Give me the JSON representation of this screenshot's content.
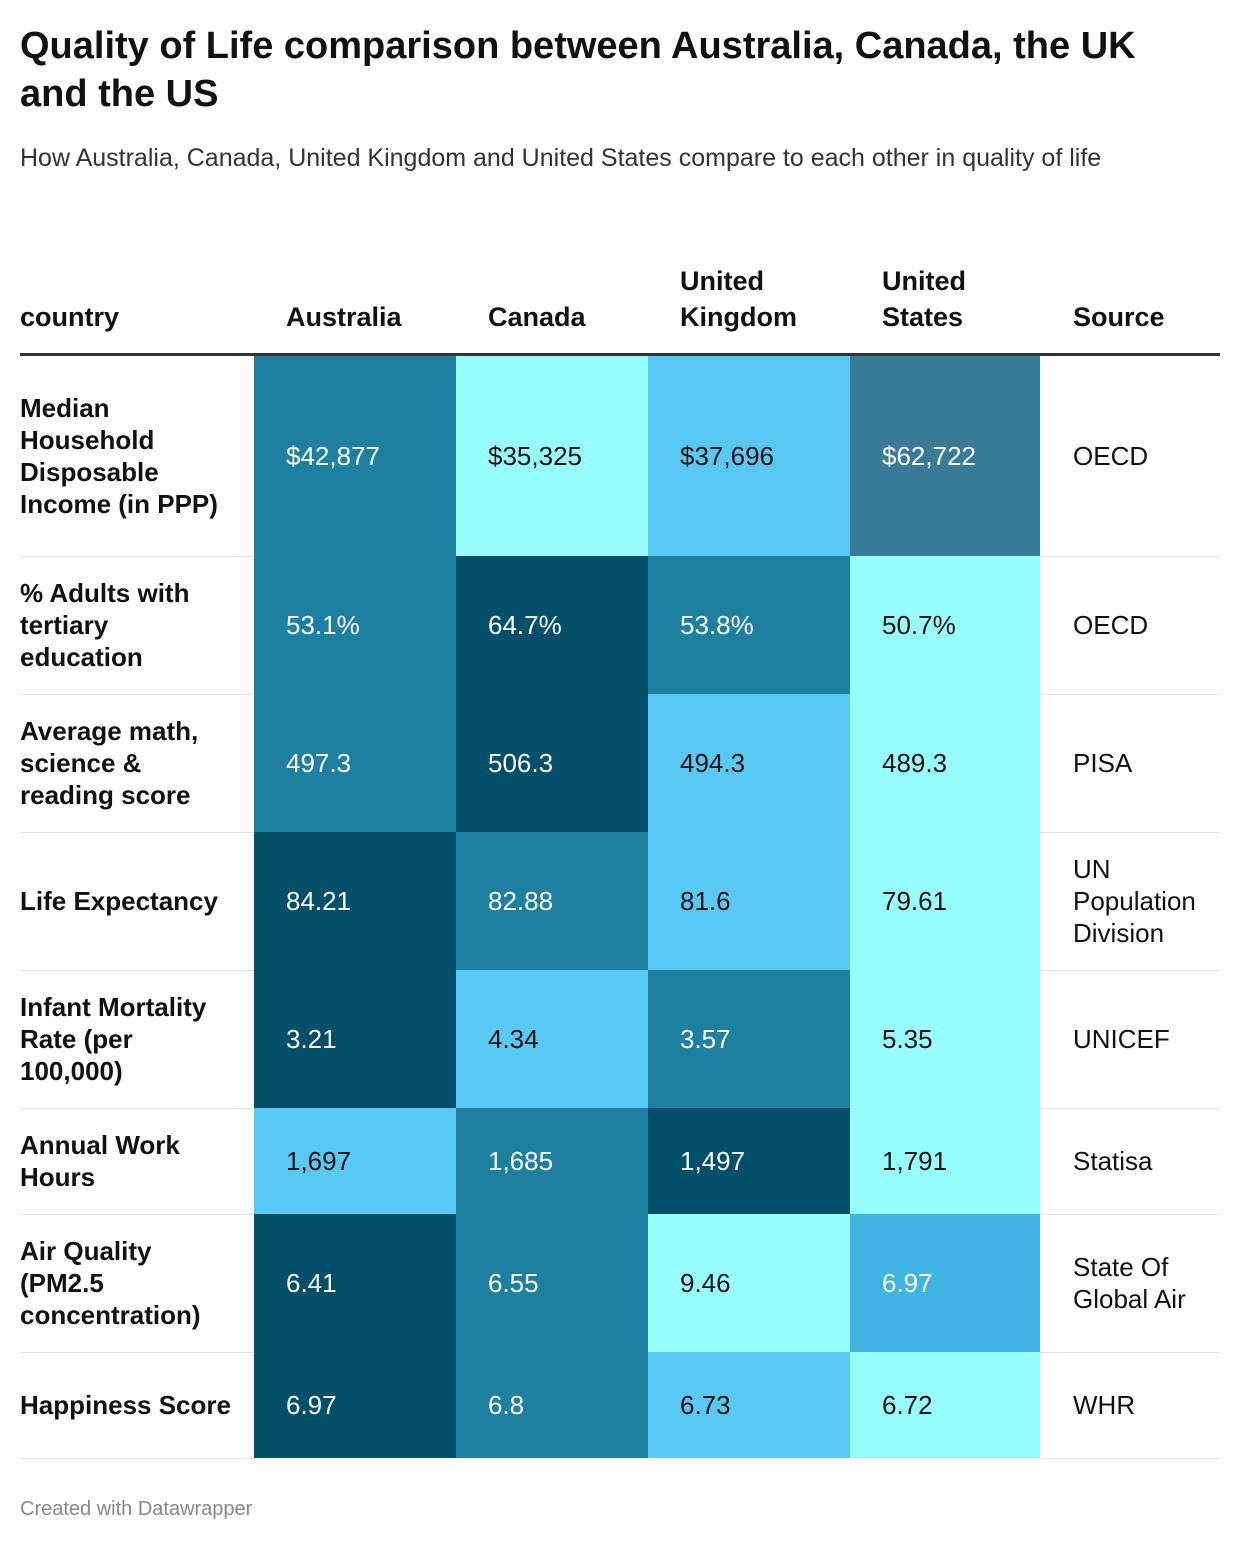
{
  "title": "Quality of Life comparison between Australia, Canada, the UK and the US",
  "subtitle": "How Australia, Canada, United Kingdom and United States compare to each other in quality of life",
  "footer": "Created with Datawrapper",
  "colors": {
    "1": "#98ffff",
    "2": "#58c8f4",
    "3": "#3fb4e0",
    "4": "#1d80a0",
    "5": "#387b96",
    "6": "#024f69"
  },
  "chart_data": {
    "type": "table",
    "columns": [
      "country",
      "Australia",
      "Canada",
      "United Kingdom",
      "United States",
      "Source"
    ],
    "rows": [
      {
        "label": "Median Household Disposable Income (in PPP)",
        "values": [
          "$42,877",
          "$35,325",
          "$37,696",
          "$62,722"
        ],
        "shades": [
          4,
          1,
          2,
          5
        ],
        "source": "OECD"
      },
      {
        "label": "% Adults with tertiary education",
        "values": [
          "53.1%",
          "64.7%",
          "53.8%",
          "50.7%"
        ],
        "shades": [
          4,
          6,
          4,
          1
        ],
        "source": "OECD"
      },
      {
        "label": "Average math, science & reading score",
        "values": [
          "497.3",
          "506.3",
          "494.3",
          "489.3"
        ],
        "shades": [
          4,
          6,
          2,
          1
        ],
        "source": "PISA"
      },
      {
        "label": "Life Expectancy",
        "values": [
          "84.21",
          "82.88",
          "81.6",
          "79.61"
        ],
        "shades": [
          6,
          4,
          2,
          1
        ],
        "source": "UN Population Division"
      },
      {
        "label": "Infant Mortality Rate (per 100,000)",
        "values": [
          "3.21",
          "4.34",
          "3.57",
          "5.35"
        ],
        "shades": [
          6,
          2,
          4,
          1
        ],
        "source": "UNICEF"
      },
      {
        "label": "Annual Work Hours",
        "values": [
          "1,697",
          "1,685",
          "1,497",
          "1,791"
        ],
        "shades": [
          2,
          4,
          6,
          1
        ],
        "source": "Statisa"
      },
      {
        "label": "Air Quality (PM2.5 concentration)",
        "values": [
          "6.41",
          "6.55",
          "9.46",
          "6.97"
        ],
        "shades": [
          6,
          4,
          1,
          3
        ],
        "source": "State Of Global Air"
      },
      {
        "label": "Happiness Score",
        "values": [
          "6.97",
          "6.8",
          "6.73",
          "6.72"
        ],
        "shades": [
          6,
          4,
          2,
          1
        ],
        "source": "WHR"
      }
    ]
  }
}
